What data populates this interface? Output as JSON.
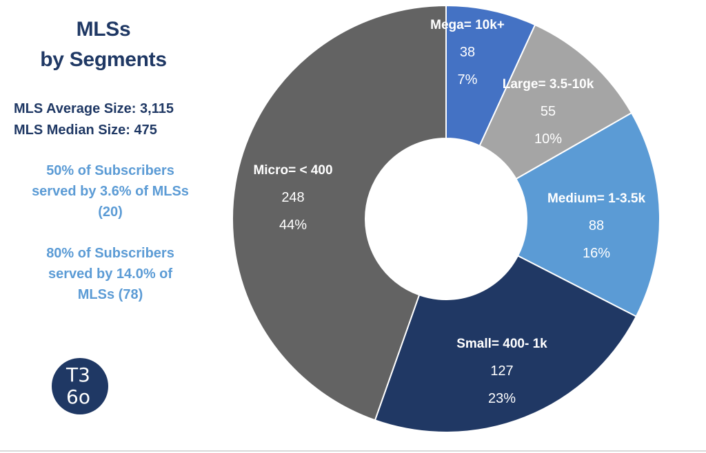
{
  "left": {
    "title_line1": "MLSs",
    "title_line2": "by Segments",
    "avg_size": "MLS Average Size: 3,115",
    "median_size": "MLS Median Size: 475",
    "note1_line1": "50% of Subscribers",
    "note1_line2": "served by 3.6% of MLSs",
    "note1_line3": "(20)",
    "note2_line1": "80% of Subscribers",
    "note2_line2": "served by 14.0% of",
    "note2_line3": "MLSs (78)",
    "logo_top": "T3",
    "logo_bottom": "6o"
  },
  "colors": {
    "title": "#1f3864",
    "accent_text": "#5b9bd5"
  },
  "chart_data": {
    "type": "pie",
    "variant": "donut",
    "start_angle_deg": 0,
    "direction": "clockwise",
    "slices": [
      {
        "label": "Mega= 10k+",
        "value": 38,
        "percent": "7%",
        "color": "#4472c4"
      },
      {
        "label": "Large= 3.5-10k",
        "value": 55,
        "percent": "10%",
        "color": "#a5a5a5"
      },
      {
        "label": "Medium=  1-3.5k",
        "value": 88,
        "percent": "16%",
        "color": "#5b9bd5"
      },
      {
        "label": "Small= 400- 1k",
        "value": 127,
        "percent": "23%",
        "color": "#203864"
      },
      {
        "label": "Micro= < 400",
        "value": 248,
        "percent": "44%",
        "color": "#636363"
      }
    ]
  }
}
